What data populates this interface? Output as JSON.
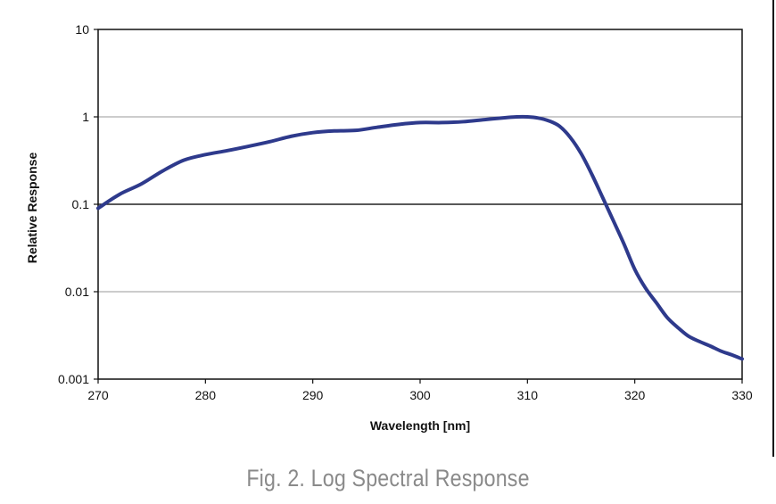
{
  "chart_data": {
    "type": "line",
    "xlabel": "Wavelength [nm]",
    "ylabel": "Relative Response",
    "xlim": [
      270,
      330
    ],
    "ylim": [
      0.001,
      10
    ],
    "y_scale": "log",
    "x_ticks": [
      "270",
      "280",
      "290",
      "300",
      "310",
      "320",
      "330"
    ],
    "y_ticks": [
      {
        "value": 10,
        "label": "10"
      },
      {
        "value": 1,
        "label": "1"
      },
      {
        "value": 0.1,
        "label": "0.1"
      },
      {
        "value": 0.01,
        "label": "0.01"
      },
      {
        "value": 0.001,
        "label": "0.001"
      }
    ],
    "grid": "horizontal",
    "legend": "none",
    "series": [
      {
        "color": "#2e3a8c",
        "x": [
          270,
          272,
          274,
          276,
          278,
          280,
          282,
          284,
          286,
          288,
          290,
          292,
          294,
          296,
          298,
          300,
          302,
          304,
          306,
          308,
          309,
          310,
          311,
          312,
          313,
          314,
          315,
          316,
          317,
          318,
          319,
          320,
          321,
          322,
          323,
          324,
          325,
          326,
          327,
          328,
          329,
          330
        ],
        "y": [
          0.09,
          0.13,
          0.17,
          0.24,
          0.32,
          0.37,
          0.41,
          0.46,
          0.52,
          0.6,
          0.66,
          0.69,
          0.7,
          0.76,
          0.82,
          0.86,
          0.86,
          0.88,
          0.93,
          0.98,
          1.0,
          1.0,
          0.97,
          0.9,
          0.78,
          0.58,
          0.38,
          0.22,
          0.12,
          0.065,
          0.035,
          0.018,
          0.011,
          0.0075,
          0.0051,
          0.0039,
          0.0031,
          0.0027,
          0.0024,
          0.0021,
          0.0019,
          0.0017
        ]
      }
    ]
  },
  "caption": "Fig. 2. Log Spectral Response",
  "colors": {
    "line": "#2e3a8c",
    "grid": "#999999",
    "grid_strong": "#222222",
    "axis": "#111111",
    "caption": "#8a8a8a"
  }
}
